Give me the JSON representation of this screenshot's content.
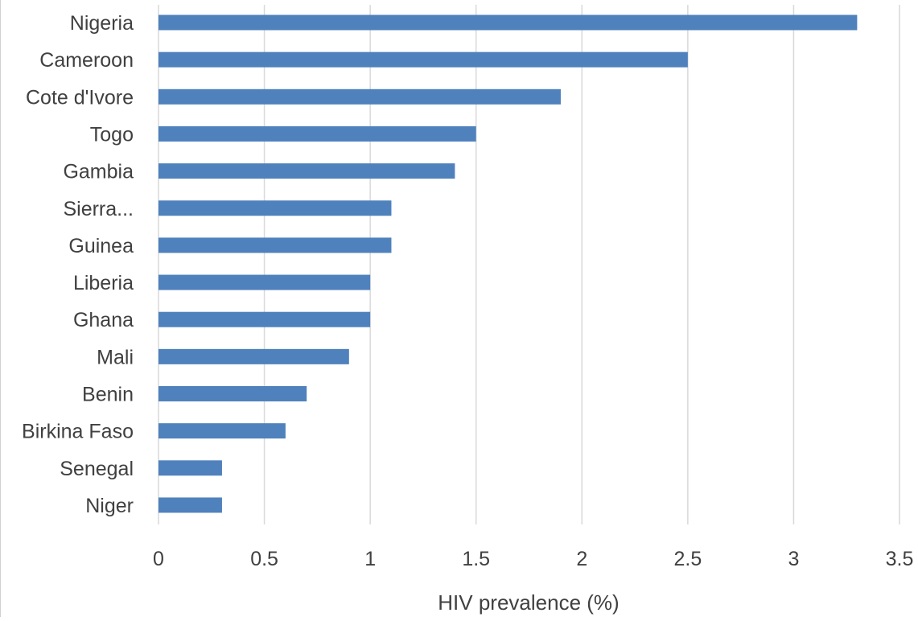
{
  "chart_data": {
    "type": "bar",
    "orientation": "horizontal",
    "categories": [
      "Nigeria",
      "Cameroon",
      "Cote d'Ivore",
      "Togo",
      "Gambia",
      "Sierra...",
      "Guinea",
      "Liberia",
      "Ghana",
      "Mali",
      "Benin",
      "Birkina Faso",
      "Senegal",
      "Niger"
    ],
    "values": [
      3.3,
      2.5,
      1.9,
      1.5,
      1.4,
      1.1,
      1.1,
      1.0,
      1.0,
      0.9,
      0.7,
      0.6,
      0.3,
      0.3
    ],
    "xlabel": "HIV prevalence (%)",
    "ylabel": "",
    "xlim": [
      0,
      3.5
    ],
    "xticks": [
      "0",
      "0.5",
      "1",
      "1.5",
      "2",
      "2.5",
      "3",
      "3.5"
    ],
    "grid": "vertical",
    "bar_color": "#4f81bd",
    "grid_color": "#d9d9d9"
  }
}
